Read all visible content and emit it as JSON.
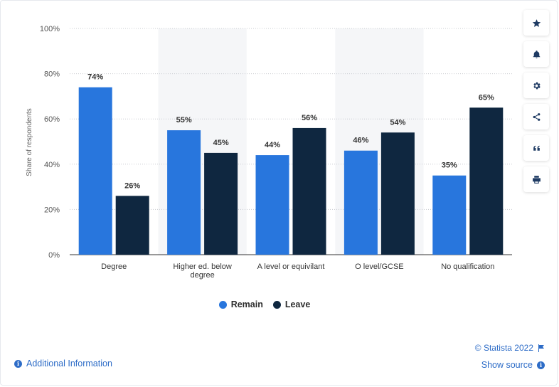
{
  "chart_data": {
    "type": "bar",
    "categories": [
      "Degree",
      "Higher ed. below degree",
      "A level or equivilant",
      "O level/GCSE",
      "No qualification"
    ],
    "category_lines": [
      [
        "Degree"
      ],
      [
        "Higher ed. below",
        "degree"
      ],
      [
        "A level or equivilant"
      ],
      [
        "O level/GCSE"
      ],
      [
        "No qualification"
      ]
    ],
    "series": [
      {
        "name": "Remain",
        "values": [
          74,
          55,
          44,
          46,
          35
        ],
        "color": "#2876dd"
      },
      {
        "name": "Leave",
        "values": [
          26,
          45,
          56,
          54,
          65
        ],
        "color": "#0f2740"
      }
    ],
    "ylabel": "Share of respondents",
    "ylim": [
      0,
      100
    ],
    "yticks": [
      "0%",
      "20%",
      "40%",
      "60%",
      "80%",
      "100%"
    ],
    "value_suffix": "%",
    "grid": true,
    "legend_position": "bottom-center"
  },
  "legend": {
    "remain_label": "Remain",
    "leave_label": "Leave",
    "remain_color": "#2876dd",
    "leave_color": "#0f2740"
  },
  "toolbar": {
    "icons": [
      "star-icon",
      "bell-icon",
      "gear-icon",
      "share-icon",
      "quote-icon",
      "print-icon"
    ]
  },
  "footer": {
    "additional_info": "Additional Information",
    "copyright": "© Statista 2022",
    "show_source": "Show source"
  },
  "colors": {
    "accent": "#2d6cc7",
    "band": "#f5f6f8"
  }
}
